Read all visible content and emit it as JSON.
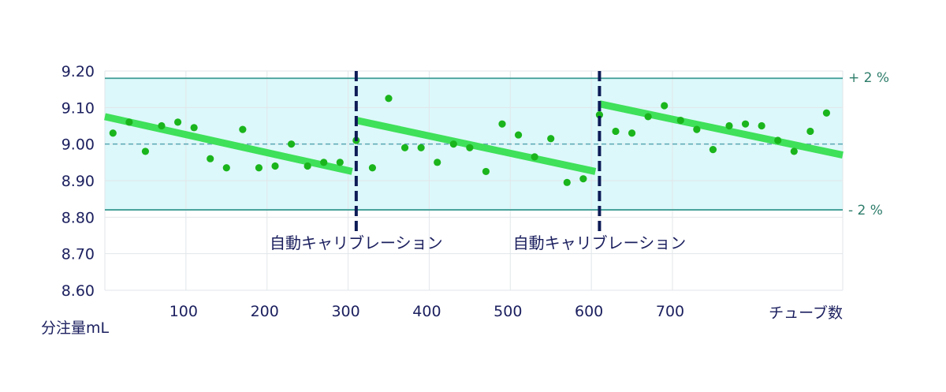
{
  "chart_data": {
    "type": "scatter",
    "y_axis_title": "分注量mL",
    "x_axis_title": "チューブ数",
    "xlim": [
      0,
      910
    ],
    "ylim": [
      8.6,
      9.2
    ],
    "y_ticks": [
      "9.20",
      "9.10",
      "9.00",
      "8.90",
      "8.80",
      "8.70",
      "8.60"
    ],
    "y_tick_values": [
      9.2,
      9.1,
      9.0,
      8.9,
      8.8,
      8.7,
      8.6
    ],
    "x_ticks": [
      "100",
      "200",
      "300",
      "400",
      "500",
      "600",
      "700"
    ],
    "x_tick_values": [
      100,
      200,
      300,
      400,
      500,
      600,
      700
    ],
    "tolerance_band": {
      "upper": 9.18,
      "lower": 8.82,
      "target": 9.0
    },
    "right_labels": {
      "upper": "+ 2 %",
      "lower": "- 2 %"
    },
    "calibrations": [
      {
        "x": 310,
        "label": "自動キャリブレーション"
      },
      {
        "x": 610,
        "label": "自動キャリブレーション"
      }
    ],
    "trend_segments": [
      {
        "x": [
          0,
          305
        ],
        "y": [
          9.075,
          8.925
        ]
      },
      {
        "x": [
          310,
          605
        ],
        "y": [
          9.065,
          8.925
        ]
      },
      {
        "x": [
          610,
          910
        ],
        "y": [
          9.11,
          8.97
        ]
      }
    ],
    "points": [
      {
        "x": 10,
        "y": 9.03
      },
      {
        "x": 30,
        "y": 9.06
      },
      {
        "x": 50,
        "y": 8.98
      },
      {
        "x": 70,
        "y": 9.05
      },
      {
        "x": 90,
        "y": 9.06
      },
      {
        "x": 110,
        "y": 9.045
      },
      {
        "x": 130,
        "y": 8.96
      },
      {
        "x": 150,
        "y": 8.935
      },
      {
        "x": 170,
        "y": 9.04
      },
      {
        "x": 190,
        "y": 8.935
      },
      {
        "x": 210,
        "y": 8.94
      },
      {
        "x": 230,
        "y": 9.0
      },
      {
        "x": 250,
        "y": 8.94
      },
      {
        "x": 270,
        "y": 8.95
      },
      {
        "x": 290,
        "y": 8.95
      },
      {
        "x": 310,
        "y": 9.01
      },
      {
        "x": 330,
        "y": 8.935
      },
      {
        "x": 350,
        "y": 9.125
      },
      {
        "x": 370,
        "y": 8.99
      },
      {
        "x": 390,
        "y": 8.99
      },
      {
        "x": 410,
        "y": 8.95
      },
      {
        "x": 430,
        "y": 9.0
      },
      {
        "x": 450,
        "y": 8.99
      },
      {
        "x": 470,
        "y": 8.925
      },
      {
        "x": 490,
        "y": 9.055
      },
      {
        "x": 510,
        "y": 9.025
      },
      {
        "x": 530,
        "y": 8.965
      },
      {
        "x": 550,
        "y": 9.015
      },
      {
        "x": 570,
        "y": 8.895
      },
      {
        "x": 590,
        "y": 8.905
      },
      {
        "x": 610,
        "y": 9.08
      },
      {
        "x": 630,
        "y": 9.035
      },
      {
        "x": 650,
        "y": 9.03
      },
      {
        "x": 670,
        "y": 9.075
      },
      {
        "x": 690,
        "y": 9.105
      },
      {
        "x": 710,
        "y": 9.065
      },
      {
        "x": 730,
        "y": 9.04
      },
      {
        "x": 750,
        "y": 8.985
      },
      {
        "x": 770,
        "y": 9.05
      },
      {
        "x": 790,
        "y": 9.055
      },
      {
        "x": 810,
        "y": 9.05
      },
      {
        "x": 830,
        "y": 9.01
      },
      {
        "x": 850,
        "y": 8.98
      },
      {
        "x": 870,
        "y": 9.035
      },
      {
        "x": 890,
        "y": 9.085
      }
    ],
    "colors": {
      "band_fill": "#dcf8fa",
      "band_line": "#3f9c95",
      "target_line": "#5aa6b4",
      "trend": "#3fe05a",
      "point": "#1ab51c",
      "calibration_line": "#0d1b56",
      "grid": "#e2e6ea"
    }
  }
}
